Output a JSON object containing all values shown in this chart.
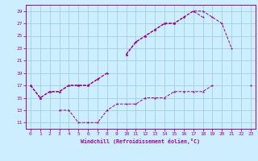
{
  "line1": {
    "x": [
      0,
      1,
      2,
      3,
      4,
      5,
      6,
      7,
      8,
      9,
      10,
      11,
      12,
      13,
      14,
      15,
      16,
      17,
      18,
      19,
      20,
      21,
      22,
      23
    ],
    "y": [
      17,
      15,
      16,
      16,
      17,
      17,
      17,
      18,
      19,
      null,
      22,
      24,
      25,
      26,
      27,
      27,
      28,
      29,
      29,
      28,
      27,
      23,
      null,
      null
    ]
  },
  "line2": {
    "x": [
      0,
      1,
      2,
      3,
      4,
      5,
      6,
      7,
      8,
      9,
      10,
      11,
      12,
      13,
      14,
      15,
      16,
      17,
      18,
      19,
      20,
      21,
      22,
      23
    ],
    "y": [
      17,
      15,
      16,
      16,
      17,
      17,
      17,
      18,
      19,
      null,
      22,
      24,
      25,
      26,
      27,
      27,
      28,
      29,
      28,
      null,
      null,
      null,
      null,
      null
    ]
  },
  "line3": {
    "x": [
      0,
      1,
      2,
      3,
      4,
      5,
      6,
      7,
      8,
      9,
      10,
      11,
      12,
      13,
      14,
      15,
      16,
      17,
      18,
      19,
      20,
      21,
      22,
      23
    ],
    "y": [
      17,
      15,
      16,
      16,
      17,
      17,
      17,
      18,
      null,
      null,
      22,
      24,
      25,
      26,
      27,
      27,
      28,
      null,
      null,
      null,
      null,
      null,
      null,
      null
    ]
  },
  "line4": {
    "x": [
      0,
      1,
      2,
      3,
      4,
      5,
      6,
      7,
      8,
      9,
      10,
      11,
      12,
      13,
      14,
      15,
      16,
      17,
      18,
      19,
      20,
      21,
      22,
      23
    ],
    "y": [
      17,
      15,
      null,
      13,
      13,
      11,
      11,
      11,
      13,
      14,
      14,
      14,
      15,
      15,
      15,
      16,
      16,
      16,
      16,
      17,
      null,
      null,
      null,
      17
    ]
  },
  "color": "#9b009b",
  "bg_color": "#cceeff",
  "grid_color": "#99cccc",
  "xlabel": "Windchill (Refroidissement éolien,°C)",
  "xlim": [
    -0.5,
    23.5
  ],
  "ylim": [
    10,
    30
  ],
  "yticks": [
    11,
    13,
    15,
    17,
    19,
    21,
    23,
    25,
    27,
    29
  ],
  "xticks": [
    0,
    1,
    2,
    3,
    4,
    5,
    6,
    7,
    8,
    9,
    10,
    11,
    12,
    13,
    14,
    15,
    16,
    17,
    18,
    19,
    20,
    21,
    22,
    23
  ]
}
